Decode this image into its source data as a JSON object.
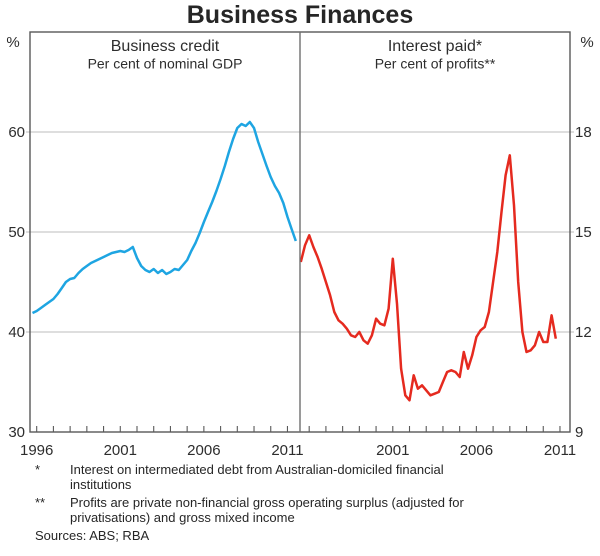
{
  "title": "Business Finances",
  "chart_data": [
    {
      "type": "line",
      "panel": "left",
      "title": "Business credit",
      "subtitle": "Per cent of nominal GDP",
      "unit": "%",
      "x_range": [
        1995.6,
        2011.75
      ],
      "x_ticks_labeled": [
        1996,
        2001,
        2006,
        2011
      ],
      "x_minor_tick_step_years": 1,
      "y_range": [
        30,
        70
      ],
      "y_gridlines": [
        40,
        50,
        60
      ],
      "y_axis_side": "left",
      "y_axis_ticks": [
        30,
        40,
        50,
        60
      ],
      "grid": true,
      "series": [
        {
          "name": "Business credit (per cent of nominal GDP)",
          "color": "#1ea5e2",
          "x_start": 1995.75,
          "x_step": 0.25,
          "values": [
            41.9,
            42.1,
            42.4,
            42.7,
            43.0,
            43.3,
            43.8,
            44.4,
            45.0,
            45.3,
            45.4,
            45.9,
            46.3,
            46.6,
            46.9,
            47.1,
            47.3,
            47.5,
            47.7,
            47.9,
            48.0,
            48.1,
            48.0,
            48.2,
            48.5,
            47.4,
            46.6,
            46.2,
            46.0,
            46.3,
            45.9,
            46.2,
            45.8,
            46.0,
            46.3,
            46.2,
            46.7,
            47.2,
            48.1,
            48.9,
            49.9,
            51.0,
            52.0,
            53.0,
            54.1,
            55.3,
            56.6,
            58.0,
            59.3,
            60.4,
            60.8,
            60.6,
            61.0,
            60.4,
            59.0,
            57.8,
            56.6,
            55.5,
            54.6,
            53.9,
            52.9,
            51.5,
            50.3,
            49.1
          ]
        }
      ]
    },
    {
      "type": "line",
      "panel": "right",
      "title": "Interest paid*",
      "subtitle": "Per cent of profits**",
      "unit": "%",
      "x_range": [
        1995.45,
        2011.6
      ],
      "x_ticks_labeled": [
        2001,
        2006,
        2011
      ],
      "x_minor_tick_step_years": 1,
      "y_range": [
        9,
        21
      ],
      "y_gridlines": [
        12,
        15,
        18
      ],
      "y_axis_side": "right",
      "y_axis_ticks": [
        9,
        12,
        15,
        18
      ],
      "grid": true,
      "series": [
        {
          "name": "Interest paid (per cent of profits)",
          "color": "#e52a1f",
          "x_start": 1995.5,
          "x_step": 0.25,
          "values": [
            14.1,
            14.6,
            14.9,
            14.55,
            14.25,
            13.9,
            13.5,
            13.1,
            12.6,
            12.35,
            12.25,
            12.1,
            11.9,
            11.85,
            12.0,
            11.75,
            11.65,
            11.9,
            12.4,
            12.25,
            12.2,
            12.7,
            14.2,
            12.85,
            10.9,
            10.1,
            9.95,
            10.7,
            10.3,
            10.4,
            10.25,
            10.1,
            10.15,
            10.2,
            10.5,
            10.8,
            10.85,
            10.8,
            10.65,
            11.4,
            10.9,
            11.3,
            11.85,
            12.05,
            12.15,
            12.6,
            13.5,
            14.4,
            15.6,
            16.7,
            17.3,
            15.8,
            13.5,
            12.0,
            11.4,
            11.45,
            11.6,
            12.0,
            11.7,
            11.7,
            12.5,
            11.8
          ]
        }
      ]
    }
  ],
  "footnotes": [
    {
      "marker": "*",
      "text": "Interest on intermediated debt from Australian-domiciled financial\ninstitutions"
    },
    {
      "marker": "**",
      "text": "Profits are private non-financial gross operating surplus (adjusted for\nprivatisations) and gross mixed income"
    }
  ],
  "sources": "Sources: ABS; RBA",
  "colors": {
    "business_credit_line": "#1ea5e2",
    "interest_paid_line": "#e52a1f",
    "gridline": "#c9c9c9",
    "frame": "#595959"
  }
}
